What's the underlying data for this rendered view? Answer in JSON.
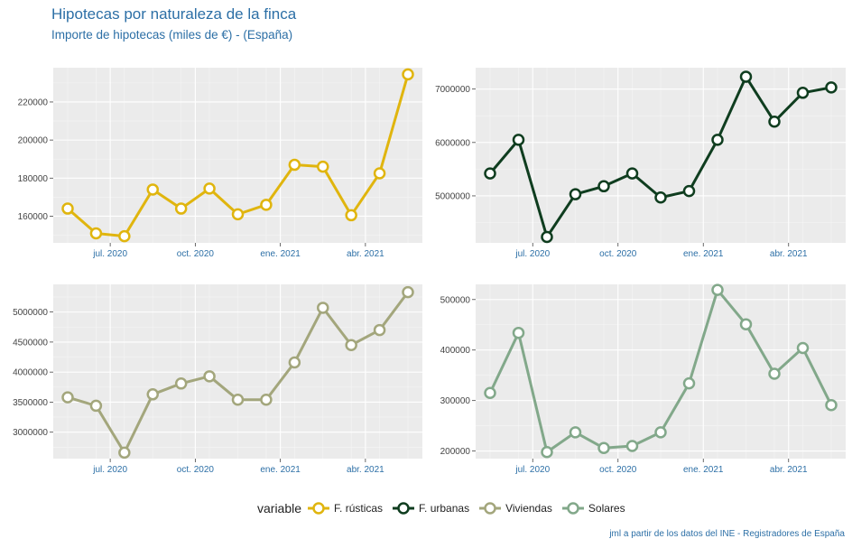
{
  "title": "Hipotecas por naturaleza de la finca",
  "subtitle": "Importe de hipotecas (miles de €) - (España)",
  "caption": "jml a partir de los datos del INE - Registradores de España",
  "legend": {
    "title": "variable",
    "items": [
      {
        "label": "F. rústicas",
        "color": "#e0b50e"
      },
      {
        "label": "F. urbanas",
        "color": "#0f3d1f"
      },
      {
        "label": "Viviendas",
        "color": "#a3a67c"
      },
      {
        "label": "Solares",
        "color": "#82a88a"
      }
    ]
  },
  "chart_data": [
    {
      "type": "line",
      "name": "F. rústicas",
      "color": "#e0b50e",
      "x": [
        "may. 2020",
        "jun. 2020",
        "jul. 2020",
        "ago. 2020",
        "sep. 2020",
        "oct. 2020",
        "nov. 2020",
        "dic. 2020",
        "ene. 2021",
        "feb. 2021",
        "mar. 2021",
        "abr. 2021",
        "may. 2021"
      ],
      "values": [
        164000,
        151000,
        149500,
        174000,
        164000,
        174500,
        161000,
        166000,
        187000,
        186000,
        160500,
        182500,
        234500
      ],
      "xticks": [
        "jul. 2020",
        "oct. 2020",
        "ene. 2021",
        "abr. 2021"
      ],
      "xtick_idx": [
        1.5,
        4.5,
        7.5,
        10.5
      ],
      "yticks": [
        "160000",
        "180000",
        "200000",
        "220000"
      ],
      "ytick_vals": [
        160000,
        180000,
        200000,
        220000
      ],
      "ylim": [
        146000,
        238000
      ]
    },
    {
      "type": "line",
      "name": "F. urbanas",
      "color": "#0f3d1f",
      "x": [
        "may. 2020",
        "jun. 2020",
        "jul. 2020",
        "ago. 2020",
        "sep. 2020",
        "oct. 2020",
        "nov. 2020",
        "dic. 2020",
        "ene. 2021",
        "feb. 2021",
        "mar. 2021",
        "abr. 2021",
        "may. 2021"
      ],
      "values": [
        5420000,
        6050000,
        4230000,
        5030000,
        5180000,
        5420000,
        4970000,
        5090000,
        6050000,
        7230000,
        6390000,
        6930000,
        7030000
      ],
      "xticks": [
        "jul. 2020",
        "oct. 2020",
        "ene. 2021",
        "abr. 2021"
      ],
      "xtick_idx": [
        1.5,
        4.5,
        7.5,
        10.5
      ],
      "yticks": [
        "5000000",
        "6000000",
        "7000000"
      ],
      "ytick_vals": [
        5000000,
        6000000,
        7000000
      ],
      "ylim": [
        4120000,
        7400000
      ]
    },
    {
      "type": "line",
      "name": "Viviendas",
      "color": "#a3a67c",
      "x": [
        "may. 2020",
        "jun. 2020",
        "jul. 2020",
        "ago. 2020",
        "sep. 2020",
        "oct. 2020",
        "nov. 2020",
        "dic. 2020",
        "ene. 2021",
        "feb. 2021",
        "mar. 2021",
        "abr. 2021",
        "may. 2021"
      ],
      "values": [
        3580000,
        3440000,
        2660000,
        3630000,
        3810000,
        3930000,
        3540000,
        3540000,
        4160000,
        5070000,
        4450000,
        4700000,
        5330000
      ],
      "xticks": [
        "jul. 2020",
        "oct. 2020",
        "ene. 2021",
        "abr. 2021"
      ],
      "xtick_idx": [
        1.5,
        4.5,
        7.5,
        10.5
      ],
      "yticks": [
        "3000000",
        "3500000",
        "4000000",
        "4500000",
        "5000000"
      ],
      "ytick_vals": [
        3000000,
        3500000,
        4000000,
        4500000,
        5000000
      ],
      "ylim": [
        2560000,
        5460000
      ]
    },
    {
      "type": "line",
      "name": "Solares",
      "color": "#82a88a",
      "x": [
        "may. 2020",
        "jun. 2020",
        "jul. 2020",
        "ago. 2020",
        "sep. 2020",
        "oct. 2020",
        "nov. 2020",
        "dic. 2020",
        "ene. 2021",
        "feb. 2021",
        "mar. 2021",
        "abr. 2021",
        "may. 2021"
      ],
      "values": [
        315000,
        434000,
        198000,
        237000,
        206000,
        210000,
        237000,
        334000,
        519000,
        451000,
        353000,
        404000,
        291000
      ],
      "xticks": [
        "jul. 2020",
        "oct. 2020",
        "ene. 2021",
        "abr. 2021"
      ],
      "xtick_idx": [
        1.5,
        4.5,
        7.5,
        10.5
      ],
      "yticks": [
        "200000",
        "300000",
        "400000",
        "500000"
      ],
      "ytick_vals": [
        200000,
        300000,
        400000,
        500000
      ],
      "ylim": [
        185000,
        530000
      ]
    }
  ]
}
